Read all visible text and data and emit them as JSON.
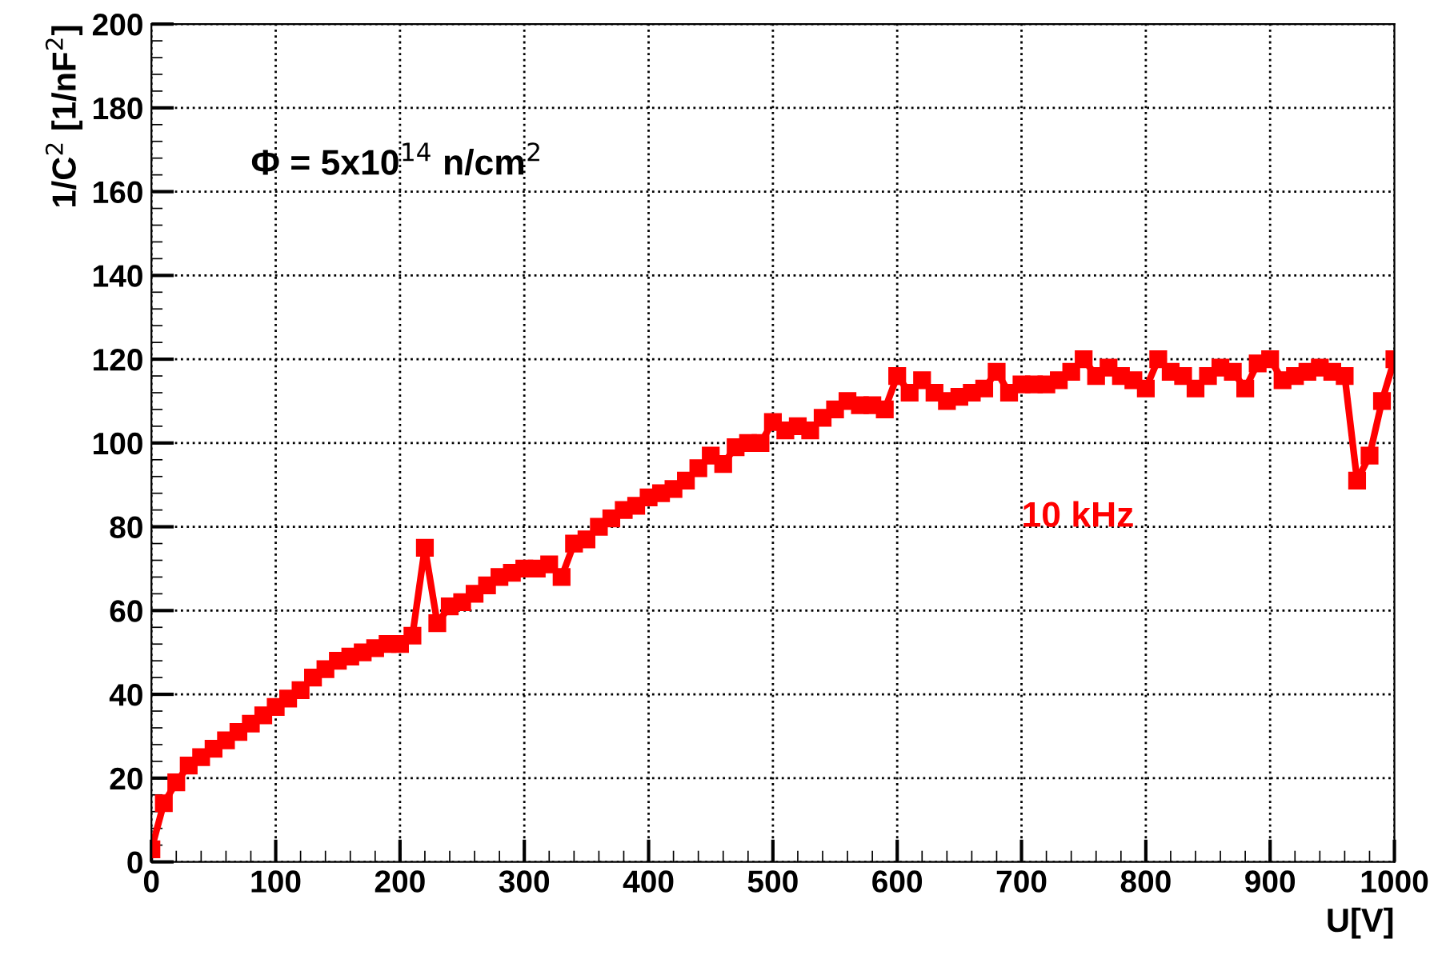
{
  "chart_data": {
    "type": "line",
    "xlabel": "U[V]",
    "ylabel": "1/C$^{2}$ [1/nF$^{2}$]",
    "annotations": [
      "Φ = 5x10$^{14}$ n/cm$^{2}$"
    ],
    "x": [
      0,
      10,
      20,
      30,
      40,
      50,
      60,
      70,
      80,
      90,
      100,
      110,
      120,
      130,
      140,
      150,
      160,
      170,
      180,
      190,
      200,
      210,
      220,
      230,
      240,
      250,
      260,
      270,
      280,
      290,
      300,
      310,
      320,
      330,
      340,
      350,
      360,
      370,
      380,
      390,
      400,
      410,
      420,
      430,
      440,
      450,
      460,
      470,
      480,
      490,
      500,
      510,
      520,
      530,
      540,
      550,
      560,
      570,
      580,
      590,
      600,
      610,
      620,
      630,
      640,
      650,
      660,
      670,
      680,
      690,
      700,
      710,
      720,
      730,
      740,
      750,
      760,
      770,
      780,
      790,
      800,
      810,
      820,
      830,
      840,
      850,
      860,
      870,
      880,
      890,
      900,
      910,
      920,
      930,
      940,
      950,
      960,
      970,
      980,
      990,
      1000
    ],
    "series": [
      {
        "name": "10 kHz",
        "color": "#ff0000",
        "values": [
          3,
          14,
          19,
          23,
          25,
          27,
          29,
          31,
          33,
          35,
          37,
          39,
          41,
          44,
          46,
          48,
          49,
          50,
          51,
          52,
          52,
          54,
          75,
          57,
          61,
          62,
          64,
          66,
          68,
          69,
          70,
          70,
          71,
          68,
          76,
          77,
          80,
          82,
          84,
          85,
          87,
          88,
          89,
          91,
          94,
          97,
          95,
          99,
          100,
          100,
          105,
          103,
          104,
          103,
          106,
          108,
          110,
          109,
          109,
          108,
          116,
          112,
          115,
          112,
          110,
          111,
          112,
          113,
          117,
          112,
          114,
          114,
          114,
          115,
          117,
          120,
          116,
          118,
          116,
          115,
          113,
          120,
          117,
          116,
          113,
          116,
          118,
          117,
          113,
          119,
          120,
          115,
          116,
          117,
          118,
          117,
          116,
          91,
          97,
          110,
          120
        ]
      }
    ],
    "xlim": [
      0,
      1000
    ],
    "ylim": [
      0,
      200
    ],
    "xticks": [
      0,
      100,
      200,
      300,
      400,
      500,
      600,
      700,
      800,
      900,
      1000
    ],
    "yticks": [
      0,
      20,
      40,
      60,
      80,
      100,
      120,
      140,
      160,
      180,
      200
    ],
    "grid": true,
    "marker": "square",
    "line_style": "solid"
  }
}
